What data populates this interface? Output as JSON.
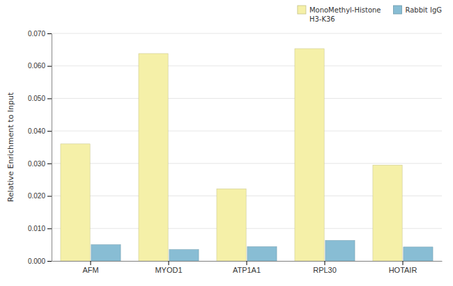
{
  "chart_data": {
    "type": "bar",
    "categories": [
      "AFM",
      "MYOD1",
      "ATP1A1",
      "RPL30",
      "HOTAIR"
    ],
    "series": [
      {
        "name": "MonoMethyl-Histone\nH3-K36",
        "color": "#F5F0A8",
        "values": [
          0.036,
          0.0638,
          0.0222,
          0.0653,
          0.0295
        ]
      },
      {
        "name": "Rabbit IgG",
        "color": "#88BDD4",
        "values": [
          0.005,
          0.0035,
          0.0044,
          0.0063,
          0.0043
        ]
      }
    ],
    "ylabel": "Relative Enrichment to Input",
    "ylim": [
      0,
      0.07
    ],
    "yticks": [
      {
        "value": 0,
        "label": "0.000"
      },
      {
        "value": 0.01,
        "label": "0.010"
      },
      {
        "value": 0.02,
        "label": "0.020"
      },
      {
        "value": 0.03,
        "label": "0.030"
      },
      {
        "value": 0.04,
        "label": "0.040"
      },
      {
        "value": 0.05,
        "label": "0.050"
      },
      {
        "value": 0.06,
        "label": "0.060"
      },
      {
        "value": 0.07,
        "label": "0.070"
      }
    ],
    "grid": true,
    "legend": "upper right"
  }
}
